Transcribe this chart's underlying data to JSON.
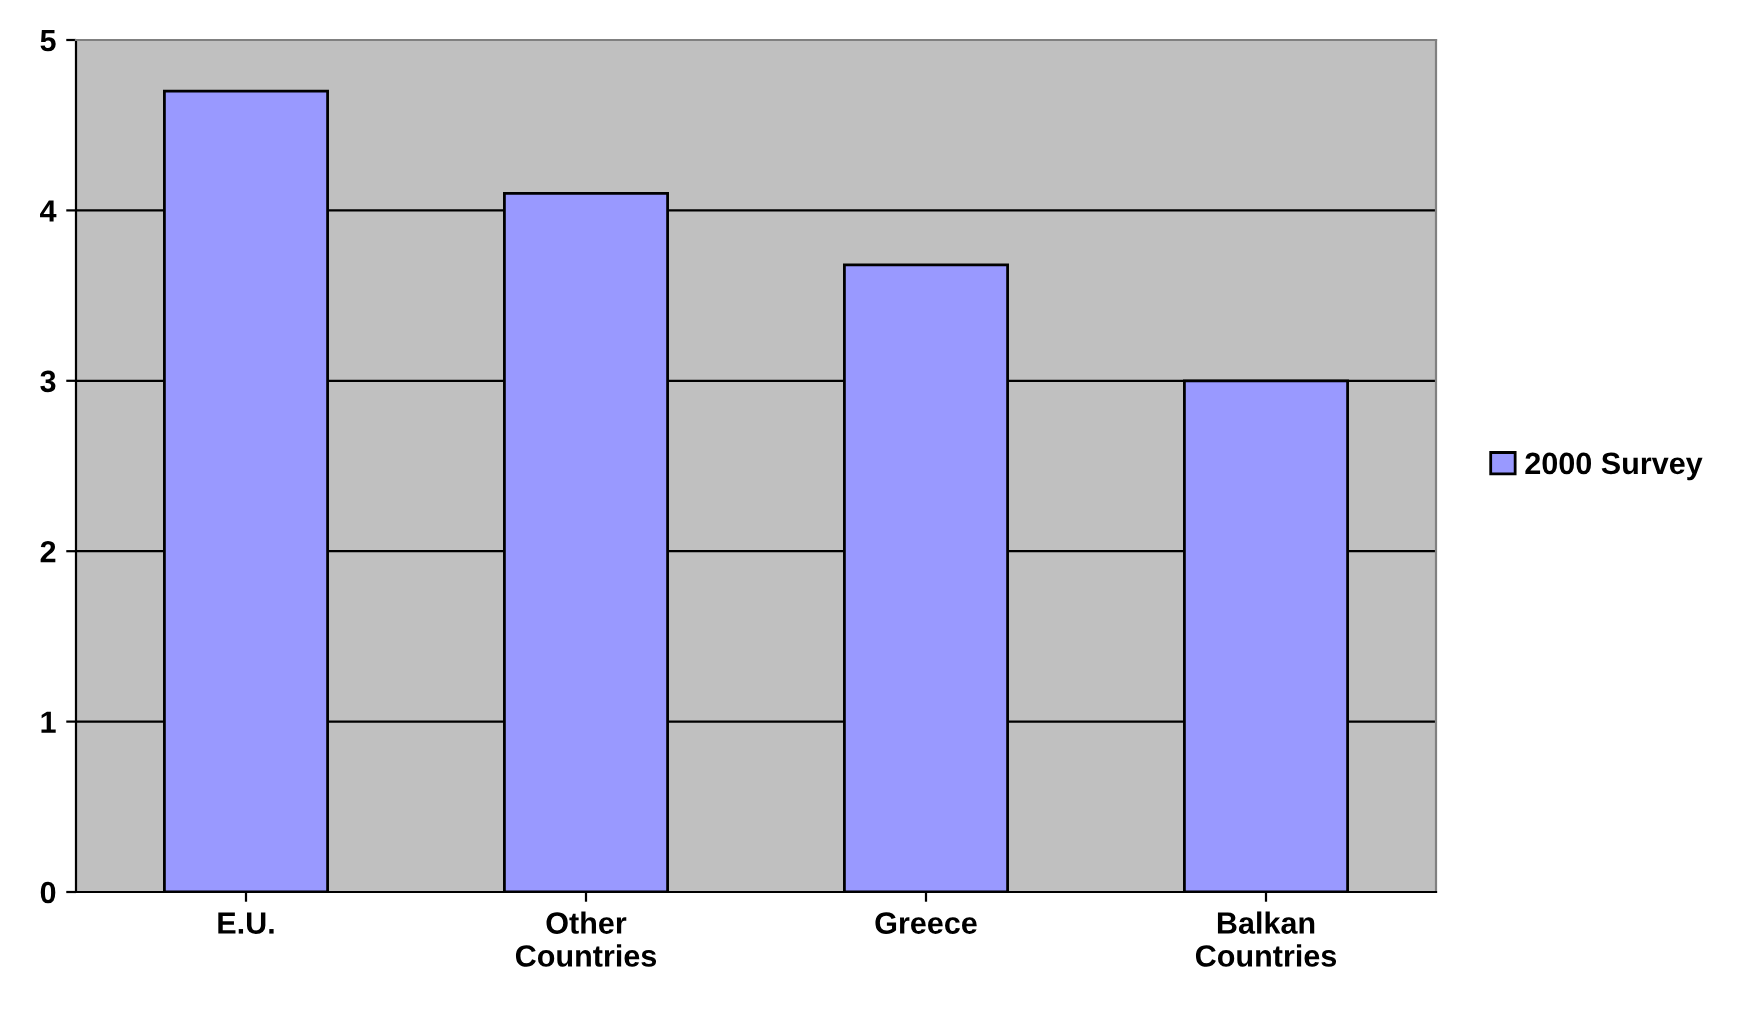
{
  "chart_data": {
    "type": "bar",
    "categories": [
      "E.U.",
      "Other\nCountries",
      "Greece",
      "Balkan\nCountries"
    ],
    "series": [
      {
        "name": "2000 Survey",
        "color": "#9999ff",
        "values": [
          4.7,
          4.1,
          3.68,
          3.0
        ]
      }
    ],
    "ylim": [
      0,
      5
    ],
    "yticks": [
      0,
      1,
      2,
      3,
      4,
      5
    ],
    "grid": "y",
    "legend": "right"
  }
}
